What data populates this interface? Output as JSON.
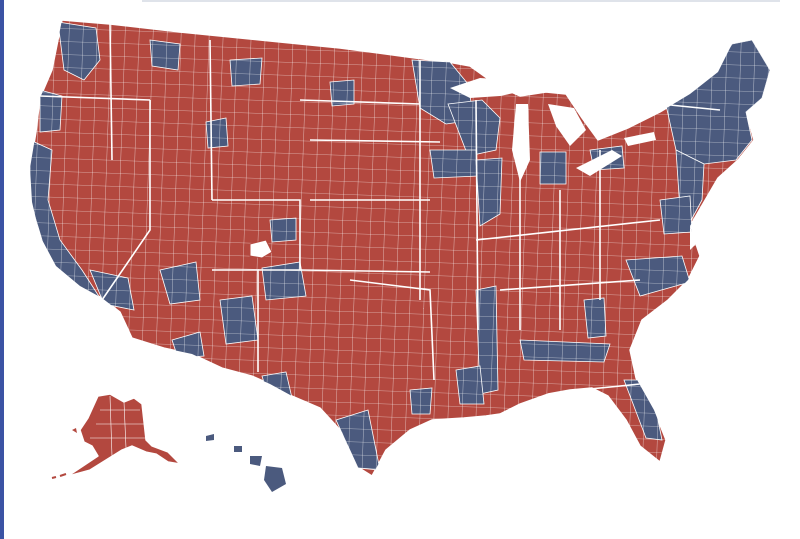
{
  "colors": {
    "republican": "#b3483f",
    "democrat": "#4b5a7e",
    "no_data": "#ffffff",
    "frame": "#3b53a4",
    "county_lines": "#ffffff"
  },
  "map": {
    "legend": [],
    "title": ""
  }
}
